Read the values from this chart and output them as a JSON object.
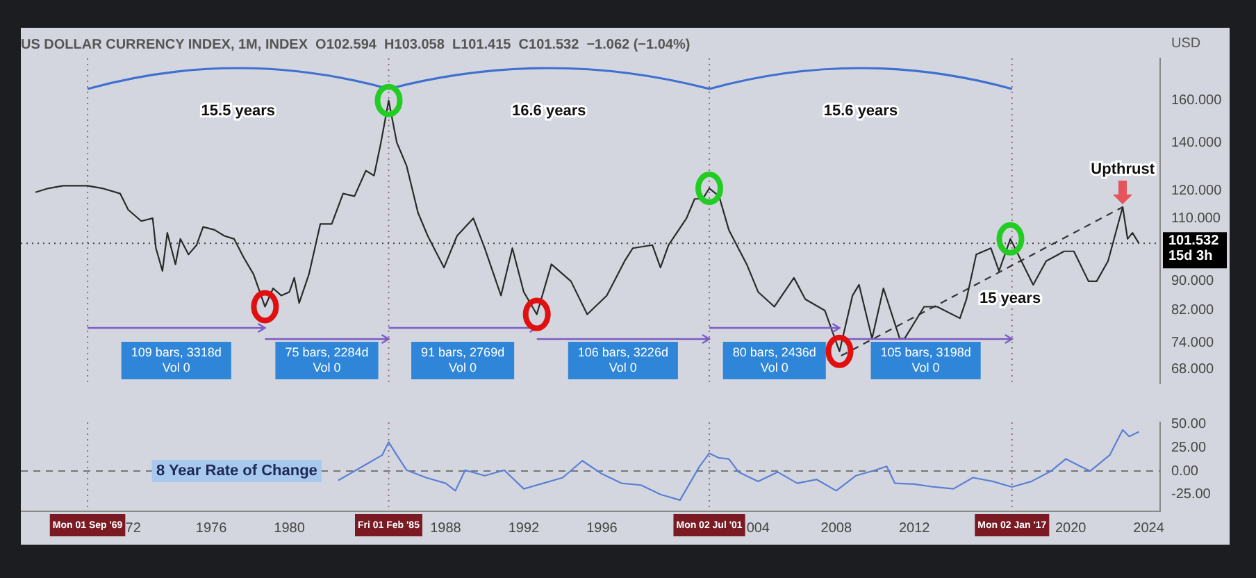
{
  "chart_data": [
    {
      "type": "line",
      "title": "US DOLLAR CURRENCY INDEX, 1M, INDEX  O102.594  H103.058  L101.415  C101.532  −1.062 (−1.04%)",
      "ylabel": "USD",
      "log": "y",
      "tick_labels": "y",
      "xlim": [
        "1966-04",
        "2024-08"
      ],
      "ylim": [
        65,
        183
      ],
      "yticks": [
        {
          "value": 68,
          "label": "68.000"
        },
        {
          "value": 74,
          "label": "74.000"
        },
        {
          "value": 82,
          "label": "82.000"
        },
        {
          "value": 90,
          "label": "90.000"
        },
        {
          "value": 110,
          "label": "110.000"
        },
        {
          "value": 120,
          "label": "120.000"
        },
        {
          "value": 140,
          "label": "140.000"
        },
        {
          "value": 160,
          "label": "160.000"
        }
      ],
      "series": [
        {
          "color": "#2a2a2a",
          "x": [
            "1967-01",
            "1967-09",
            "1968-06",
            "1969-09",
            "1970-06",
            "1971-05",
            "1971-10",
            "1972-06",
            "1973-01",
            "1973-03",
            "1973-07",
            "1973-10",
            "1974-03",
            "1974-06",
            "1974-11",
            "1975-04",
            "1975-08",
            "1976-03",
            "1976-09",
            "1977-03",
            "1977-09",
            "1978-03",
            "1978-10",
            "1979-03",
            "1979-08",
            "1980-01",
            "1980-04",
            "1980-07",
            "1981-01",
            "1981-08",
            "1982-03",
            "1982-10",
            "1983-05",
            "1983-12",
            "1984-05",
            "1984-09",
            "1985-02",
            "1985-07",
            "1986-01",
            "1986-08",
            "1987-02",
            "1987-12",
            "1988-08",
            "1989-06",
            "1990-01",
            "1990-11",
            "1991-06",
            "1992-01",
            "1992-09",
            "1993-06",
            "1994-06",
            "1995-04",
            "1996-04",
            "1997-03",
            "1997-08",
            "1998-08",
            "1999-01",
            "1999-06",
            "2000-05",
            "2000-10",
            "2001-03",
            "2001-07",
            "2002-01",
            "2002-07",
            "2003-06",
            "2004-01",
            "2004-11",
            "2005-11",
            "2006-06",
            "2007-06",
            "2008-03",
            "2008-11",
            "2009-03",
            "2009-11",
            "2010-06",
            "2011-04",
            "2011-07",
            "2012-07",
            "2013-03",
            "2014-05",
            "2014-09",
            "2015-03",
            "2015-12",
            "2016-05",
            "2016-12",
            "2018-02",
            "2018-10",
            "2019-09",
            "2020-03",
            "2020-12",
            "2021-05",
            "2021-12",
            "2022-09",
            "2022-12",
            "2023-03",
            "2023-07"
          ],
          "values": [
            119.5,
            121,
            122,
            122,
            121,
            119,
            113,
            109,
            110,
            100,
            93,
            105,
            95,
            103,
            98,
            101,
            107,
            106,
            104,
            103,
            97,
            92,
            83,
            88,
            86,
            87,
            91,
            84,
            92,
            108,
            108,
            119,
            118,
            128,
            126,
            139,
            160,
            140,
            130,
            112,
            104,
            94,
            104,
            110,
            100,
            86,
            100,
            87,
            81,
            95,
            90,
            81,
            86,
            96,
            100,
            101,
            94,
            101,
            110,
            117,
            117,
            121,
            118,
            106,
            95,
            87,
            83,
            91,
            85,
            82,
            72,
            86,
            89,
            75,
            88,
            75,
            75,
            83,
            83,
            80,
            85,
            98,
            100,
            93,
            103,
            89,
            96,
            99,
            99,
            90,
            90,
            96,
            114,
            103,
            105,
            101.532
          ]
        },
        {
          "type": "line",
          "line_style": "dashed",
          "color": "#333333",
          "x": [
            "2008-04",
            "2022-09"
          ],
          "values": [
            71,
            114
          ]
        }
      ],
      "ref_lines": [
        {
          "axis": "x",
          "value": "1969-09",
          "color": "#9a6a7a",
          "line_style": "dotted"
        },
        {
          "axis": "x",
          "value": "1985-02",
          "color": "#9a6a7a",
          "line_style": "dotted"
        },
        {
          "axis": "x",
          "value": "2001-07",
          "color": "#9a6a7a",
          "line_style": "dotted"
        },
        {
          "axis": "x",
          "value": "2017-01",
          "color": "#9a6a7a",
          "line_style": "dotted"
        },
        {
          "axis": "y",
          "value": 101.532,
          "label": "101.532\n15d 3h",
          "color": "#444444",
          "line_style": "dotted"
        }
      ],
      "annotations": [
        "15.5 years",
        "16.6 years",
        "15.6 years",
        {
          "text": "Upthrust",
          "x": "2022-09",
          "y": 114
        },
        {
          "text": "15 years",
          "x": "2016-05",
          "y": 93
        },
        "109 bars, 3318d\nVol 0",
        "75 bars, 2284d\nVol 0",
        "91 bars, 2769d\nVol 0",
        "106 bars, 3226d\nVol 0",
        "80 bars, 2436d\nVol 0",
        "105 bars, 3198d\nVol 0"
      ]
    },
    {
      "type": "line",
      "xlim": [
        "1966-04",
        "2024-08"
      ],
      "ylim": [
        -43,
        52
      ],
      "xticks": [
        {
          "value": "1972",
          "label": "72"
        },
        {
          "value": "1976",
          "label": "1976"
        },
        {
          "value": "1980",
          "label": "1980"
        },
        {
          "value": "1988",
          "label": "1988"
        },
        {
          "value": "1992",
          "label": "1992"
        },
        {
          "value": "1996",
          "label": "1996"
        },
        {
          "value": "2004",
          "label": "004"
        },
        {
          "value": "2008",
          "label": "2008"
        },
        {
          "value": "2012",
          "label": "2012"
        },
        {
          "value": "2020",
          "label": "2020"
        },
        {
          "value": "2024",
          "label": "2024"
        }
      ],
      "yticks": [
        {
          "value": -25,
          "label": "-25.00"
        },
        {
          "value": 0,
          "label": "0.00"
        },
        {
          "value": 25,
          "label": "25.00"
        },
        {
          "value": 50,
          "label": "50.00"
        }
      ],
      "series": [
        {
          "name": "8 Year Rate of Change",
          "color": "#5b7fd6",
          "x": [
            "1982-07",
            "1983-06",
            "1984-01",
            "1984-10",
            "1985-02",
            "1985-07",
            "1986-01",
            "1987-01",
            "1988-01",
            "1988-07",
            "1989-01",
            "1990-01",
            "1991-01",
            "1992-01",
            "1993-01",
            "1994-01",
            "1995-01",
            "1996-01",
            "1997-01",
            "1998-01",
            "1999-01",
            "2000-01",
            "2001-01",
            "2001-07",
            "2002-01",
            "2002-07",
            "2003-01",
            "2004-01",
            "2005-01",
            "2006-01",
            "2007-01",
            "2008-01",
            "2009-01",
            "2010-01",
            "2010-08",
            "2011-01",
            "2012-01",
            "2013-01",
            "2014-01",
            "2015-01",
            "2016-01",
            "2017-01",
            "2018-01",
            "2019-01",
            "2019-10",
            "2020-07",
            "2021-01",
            "2022-01",
            "2022-09",
            "2023-01",
            "2023-07"
          ],
          "values": [
            -10,
            1,
            8,
            17,
            31,
            17,
            1,
            -7,
            -13,
            -21,
            1,
            -5,
            1,
            -19,
            -13,
            -7,
            11,
            -3,
            -13,
            -15,
            -25,
            -31,
            5,
            19,
            14,
            13,
            -1,
            -11,
            -1,
            -13,
            -9,
            -21,
            -5,
            1,
            5,
            -13,
            -14,
            -17,
            -19,
            -7,
            -11,
            -17,
            -11,
            0,
            13,
            5,
            0,
            17,
            44,
            37,
            42
          ]
        }
      ],
      "ref_lines": [
        {
          "axis": "x",
          "value": "1969-09",
          "label": "Mon 01 Sep '69",
          "color": "#9a6a7a",
          "line_style": "dotted"
        },
        {
          "axis": "x",
          "value": "1985-02",
          "label": "Fri 01 Feb '85",
          "color": "#9a6a7a",
          "line_style": "dotted"
        },
        {
          "axis": "x",
          "value": "2001-07",
          "label": "Mon 02 Jul '01",
          "color": "#9a6a7a",
          "line_style": "dotted"
        },
        {
          "axis": "x",
          "value": "2017-01",
          "label": "Mon 02 Jan '17",
          "color": "#9a6a7a",
          "line_style": "dotted"
        },
        {
          "axis": "y",
          "value": 0,
          "color": "#777777",
          "line_style": "dashed"
        }
      ]
    }
  ]
}
